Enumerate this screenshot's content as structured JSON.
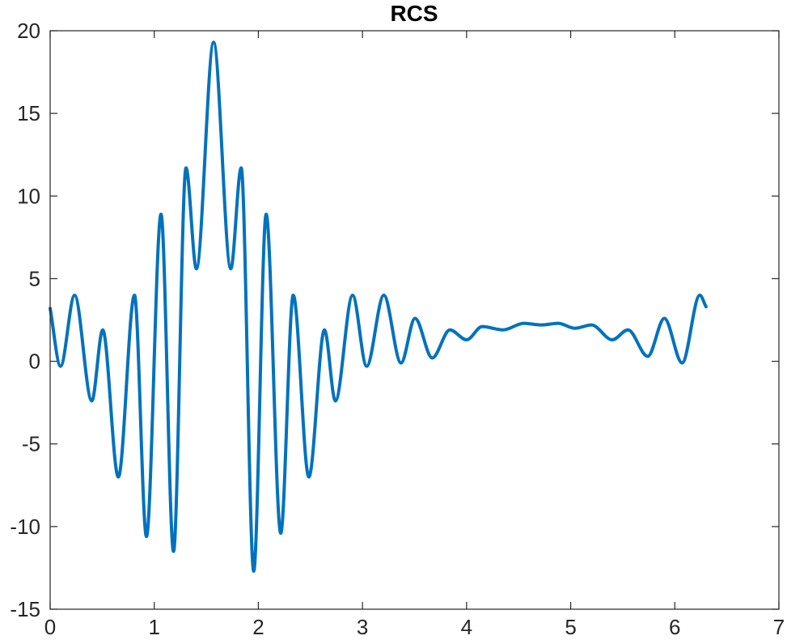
{
  "chart_data": {
    "type": "line",
    "title": "RCS",
    "xlabel": "",
    "ylabel": "",
    "xlim": [
      0,
      7
    ],
    "ylim": [
      -15,
      20
    ],
    "xticks": [
      "0",
      "1",
      "2",
      "3",
      "4",
      "5",
      "6",
      "7"
    ],
    "yticks": [
      "-15",
      "-10",
      "-5",
      "0",
      "5",
      "10",
      "15",
      "20"
    ],
    "grid": false,
    "legend": "none",
    "series": [
      {
        "color": "#0072BD",
        "x": [
          0,
          0.1,
          0.235,
          0.4,
          0.505,
          0.655,
          0.81,
          0.925,
          1.065,
          1.185,
          1.305,
          1.405,
          1.57,
          1.735,
          1.835,
          1.955,
          2.075,
          2.215,
          2.335,
          2.485,
          2.635,
          2.74,
          2.905,
          3.04,
          3.205,
          3.37,
          3.505,
          3.67,
          3.84,
          4.0,
          4.15,
          4.35,
          4.55,
          4.72,
          4.88,
          5.04,
          5.2,
          5.4,
          5.55,
          5.74,
          5.9,
          6.07,
          6.24,
          6.3
        ],
        "y": [
          3.2,
          -0.3,
          4.0,
          -2.4,
          1.9,
          -7.0,
          4.0,
          -10.6,
          8.9,
          -11.5,
          11.7,
          5.6,
          19.3,
          5.6,
          11.7,
          -12.7,
          8.9,
          -10.4,
          4.0,
          -7.0,
          1.9,
          -2.4,
          4.0,
          -0.3,
          4.0,
          -0.1,
          2.6,
          0.2,
          1.9,
          1.3,
          2.1,
          1.9,
          2.3,
          2.2,
          2.3,
          2.0,
          2.2,
          1.3,
          1.9,
          0.3,
          2.6,
          -0.1,
          4.0,
          3.3
        ]
      }
    ]
  }
}
